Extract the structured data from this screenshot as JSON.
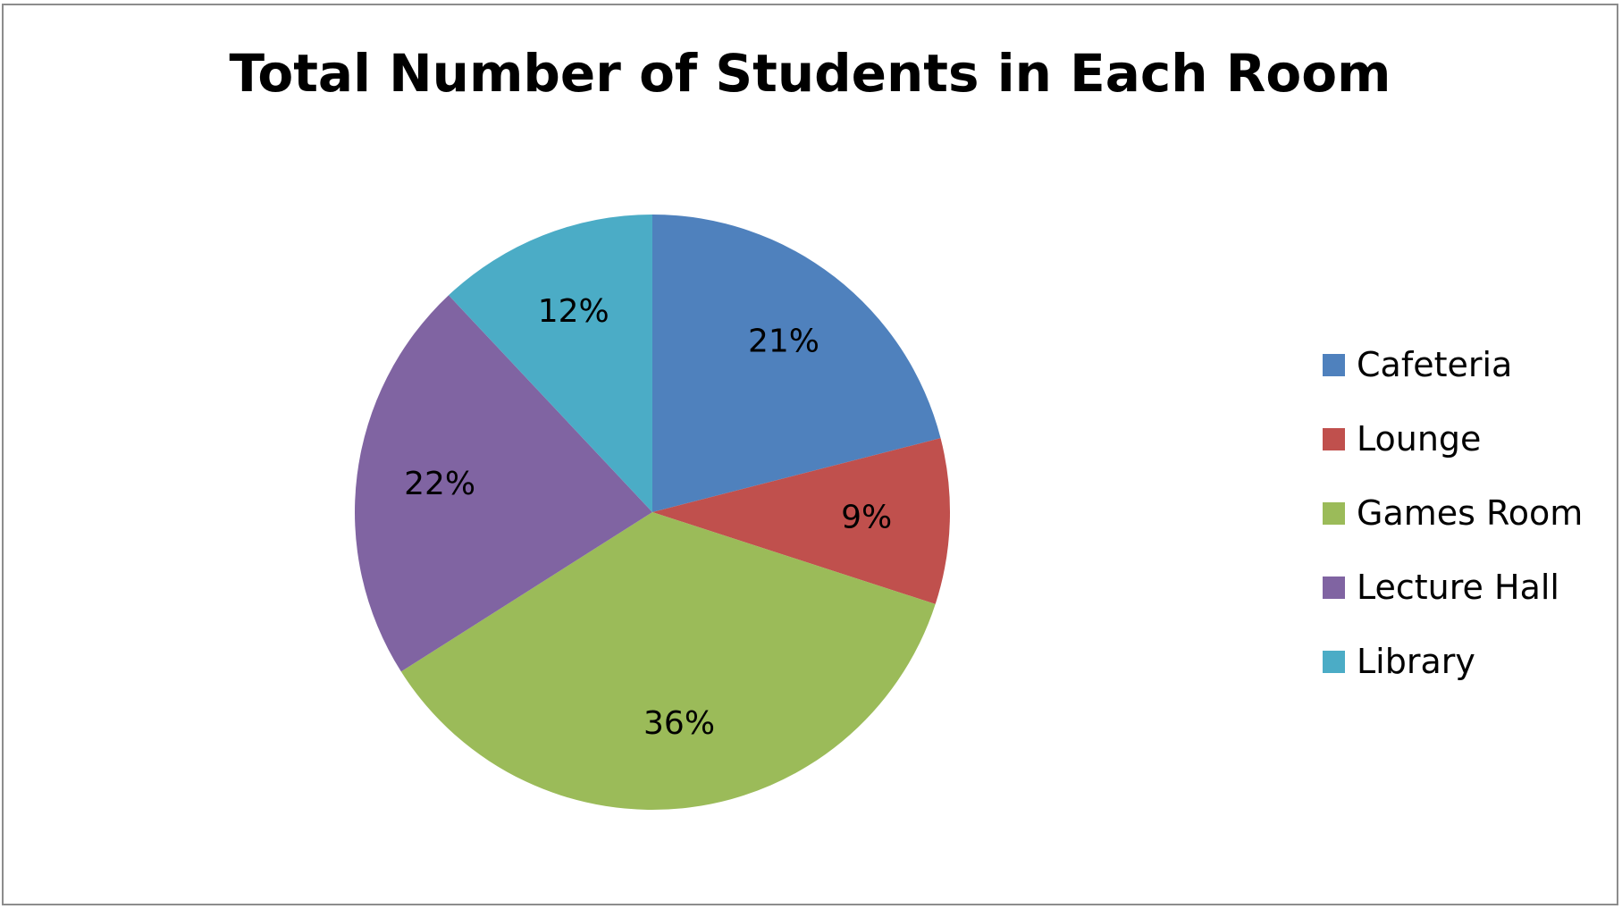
{
  "chart_data": {
    "type": "pie",
    "title": "Total Number of Students in Each Room",
    "categories": [
      "Cafeteria",
      "Lounge",
      "Games Room",
      "Lecture Hall",
      "Library"
    ],
    "values": [
      21,
      9,
      36,
      22,
      12
    ],
    "labels": [
      "21%",
      "9%",
      "36%",
      "22%",
      "12%"
    ],
    "colors": [
      "#4f81bd",
      "#c0504d",
      "#9bbb59",
      "#8064a2",
      "#4bacc6"
    ],
    "legend_position": "right"
  }
}
